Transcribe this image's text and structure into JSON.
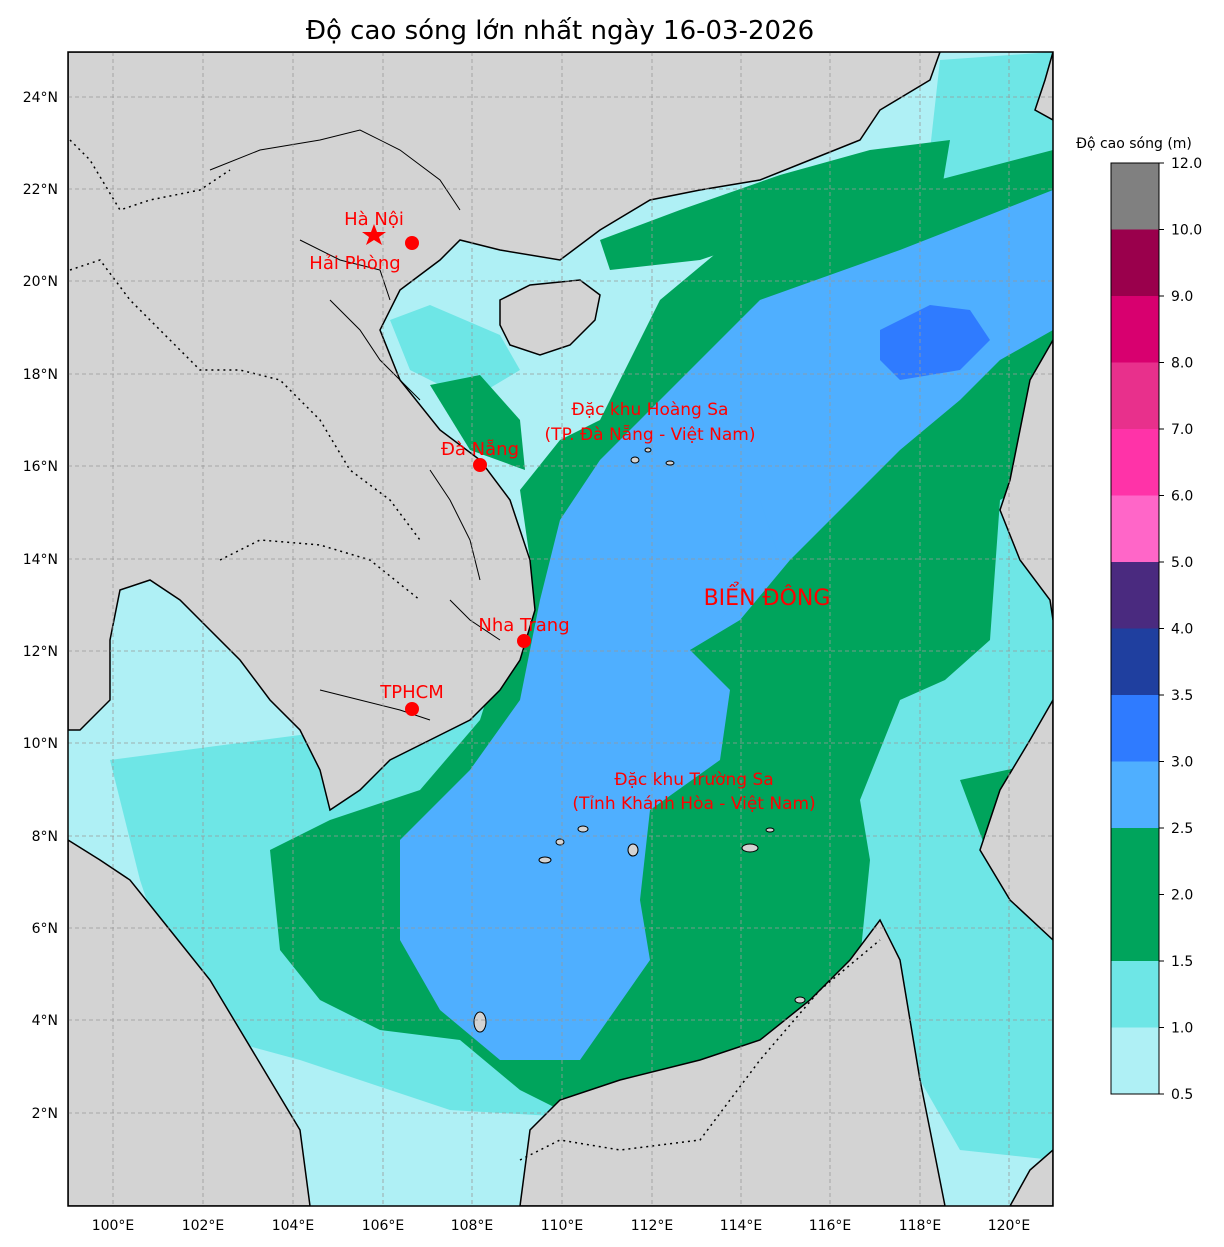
{
  "title": "Độ cao sóng lớn nhất ngày 16-03-2026",
  "lon_ticks": [
    "100°E",
    "102°E",
    "104°E",
    "106°E",
    "108°E",
    "110°E",
    "112°E",
    "114°E",
    "116°E",
    "118°E",
    "120°E"
  ],
  "lat_ticks": [
    "24°N",
    "22°N",
    "20°N",
    "18°N",
    "16°N",
    "14°N",
    "12°N",
    "10°N",
    "8°N",
    "6°N",
    "4°N",
    "2°N"
  ],
  "places": {
    "ha_noi": "Hà Nội",
    "hai_phong": "Hải Phòng",
    "da_nang": "Đà Nẵng",
    "nha_trang": "Nha Trang",
    "tphcm": "TPHCM"
  },
  "zones": {
    "hoang_sa_line1": "Đặc khu Hoàng Sa",
    "hoang_sa_line2": "(TP. Đà Nẵng - Việt Nam)",
    "truong_sa_line1": "Đặc khu Trường Sa",
    "truong_sa_line2": "(Tỉnh Khánh Hòa - Việt Nam)"
  },
  "sea_label": "BIỂN ĐÔNG",
  "colorbar": {
    "title": "Độ cao sóng (m)",
    "ticks": [
      "0.5",
      "1.0",
      "1.5",
      "2.0",
      "2.5",
      "3.0",
      "3.5",
      "4.0",
      "5.0",
      "6.0",
      "7.0",
      "8.0",
      "9.0",
      "10.0",
      "12.0"
    ],
    "colors": [
      "#aff0f5",
      "#6ee6e6",
      "#00a45c",
      "#00a45c",
      "#4fafff",
      "#2f7bff",
      "#1f3f9f",
      "#4a2a7f",
      "#ff66c8",
      "#ff33a8",
      "#e8308c",
      "#d8006f",
      "#9a004c",
      "#808080"
    ]
  },
  "colors": {
    "land": "#d3d3d3",
    "wave_lt1": "#aff0f5",
    "wave_1_15": "#6ee6e6",
    "wave_15_2": "#00a45c",
    "wave_2_3": "#4fafff",
    "wave_3_35": "#2f7bff",
    "marker": "#ff0000"
  }
}
